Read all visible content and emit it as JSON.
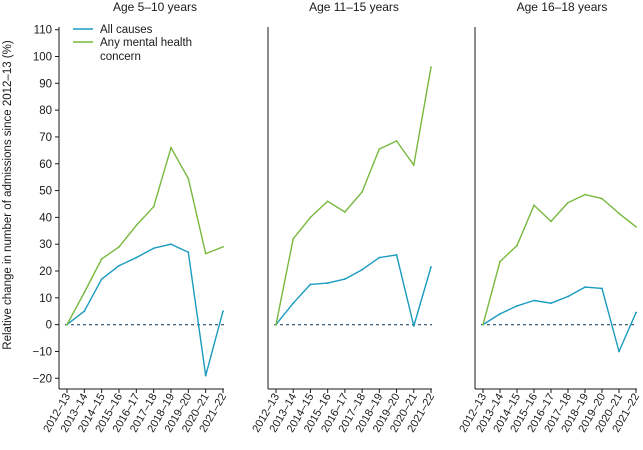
{
  "chart_data": {
    "type": "line",
    "ylabel": "Relative change in number of admissions since 2012–13 (%)",
    "y_ticks": [
      -20,
      -10,
      0,
      10,
      20,
      30,
      40,
      50,
      60,
      70,
      80,
      90,
      100,
      110
    ],
    "ylim": [
      -24,
      111
    ],
    "categories": [
      "2012–13",
      "2013–14",
      "2014–15",
      "2015–16",
      "2016–17",
      "2017–18",
      "2018–19",
      "2019–20",
      "2020–21",
      "2021–22"
    ],
    "colors": {
      "all_causes": "#1a9bbf",
      "mental_health": "#78b83e",
      "zero_line": "#2b4e6e",
      "axis": "#1a1a1a"
    },
    "legend": [
      {
        "key": "all_causes",
        "lines": [
          "All causes"
        ]
      },
      {
        "key": "mental_health",
        "lines": [
          "Any mental health",
          "concern"
        ]
      }
    ],
    "panels": [
      {
        "title": "Age 5–10 years",
        "series": [
          {
            "name": "All causes",
            "key": "all_causes",
            "values": [
              0,
              5,
              17,
              22,
              25,
              28.5,
              30,
              27,
              -19,
              5
            ]
          },
          {
            "name": "Any mental health concern",
            "key": "mental_health",
            "values": [
              0,
              12,
              24.5,
              29,
              37,
              44,
              66,
              54.5,
              26.5,
              29
            ]
          }
        ]
      },
      {
        "title": "Age 11–15 years",
        "series": [
          {
            "name": "All causes",
            "key": "all_causes",
            "values": [
              0,
              8,
              15,
              15.5,
              17,
              20.5,
              25,
              26,
              -0.5,
              21.5
            ]
          },
          {
            "name": "Any mental health concern",
            "key": "mental_health",
            "values": [
              0,
              32,
              40,
              46,
              42,
              49.5,
              65.5,
              68.5,
              59.5,
              96
            ]
          }
        ]
      },
      {
        "title": "Age 16–18 years",
        "series": [
          {
            "name": "All causes",
            "key": "all_causes",
            "values": [
              0,
              4,
              7,
              9,
              8,
              10.5,
              14,
              13.5,
              -10,
              4.5
            ]
          },
          {
            "name": "Any mental health concern",
            "key": "mental_health",
            "values": [
              0,
              23.5,
              29.5,
              44.5,
              38.5,
              45.5,
              48.5,
              47,
              41.5,
              36.5
            ]
          }
        ]
      }
    ]
  }
}
